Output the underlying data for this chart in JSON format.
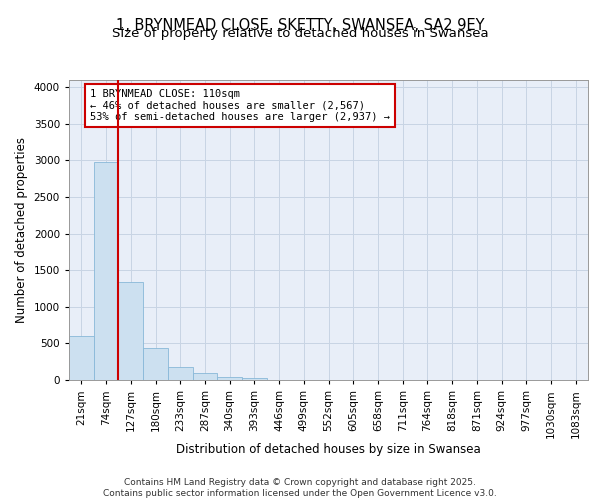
{
  "title1": "1, BRYNMEAD CLOSE, SKETTY, SWANSEA, SA2 9EY",
  "title2": "Size of property relative to detached houses in Swansea",
  "xlabel": "Distribution of detached houses by size in Swansea",
  "ylabel": "Number of detached properties",
  "bar_labels": [
    "21sqm",
    "74sqm",
    "127sqm",
    "180sqm",
    "233sqm",
    "287sqm",
    "340sqm",
    "393sqm",
    "446sqm",
    "499sqm",
    "552sqm",
    "605sqm",
    "658sqm",
    "711sqm",
    "764sqm",
    "818sqm",
    "871sqm",
    "924sqm",
    "977sqm",
    "1030sqm",
    "1083sqm"
  ],
  "bar_values": [
    600,
    2980,
    1340,
    440,
    175,
    95,
    40,
    25,
    5,
    2,
    0,
    0,
    0,
    0,
    0,
    0,
    0,
    0,
    0,
    0,
    0
  ],
  "bar_color": "#cce0f0",
  "bar_edge_color": "#88b8d8",
  "vline_x": 1.5,
  "vline_color": "#cc0000",
  "ylim": [
    0,
    4100
  ],
  "yticks": [
    0,
    500,
    1000,
    1500,
    2000,
    2500,
    3000,
    3500,
    4000
  ],
  "grid_color": "#c8d4e4",
  "bg_color": "#e8eef8",
  "annotation_text": "1 BRYNMEAD CLOSE: 110sqm\n← 46% of detached houses are smaller (2,567)\n53% of semi-detached houses are larger (2,937) →",
  "footer_text": "Contains HM Land Registry data © Crown copyright and database right 2025.\nContains public sector information licensed under the Open Government Licence v3.0.",
  "title1_fontsize": 10.5,
  "title2_fontsize": 9.5,
  "axis_label_fontsize": 8.5,
  "tick_fontsize": 7.5,
  "annotation_fontsize": 7.5,
  "footer_fontsize": 6.5
}
